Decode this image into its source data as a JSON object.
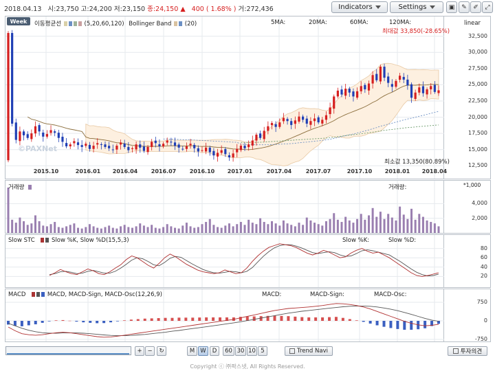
{
  "header": {
    "date": "2018.04.13",
    "open": "시:23,750",
    "high": "고:24,200",
    "low": "저:23,150",
    "close_label": "종:24,150",
    "change_arrow": "▲",
    "change": "400",
    "change_pct": "( 1.68% )",
    "volume": "거:272,436",
    "indicators_btn": "Indicators",
    "settings_btn": "Settings",
    "icon_print": "print-icon",
    "icon_pen": "pen-icon",
    "icon_erase": "eraser-icon",
    "icon_expand": "expand-icon"
  },
  "price_pane": {
    "period_btn": "Week",
    "ma_legend": "이동평균선",
    "ma_params": "(5,20,60,120)",
    "bb_legend": "Bollinger Band",
    "bb_params": "(20)",
    "ma5": "5MA:",
    "ma20": "20MA:",
    "ma60": "60MA:",
    "ma120": "120MA:",
    "scale": "linear",
    "max_label": "최대값 33,850(-28.65%)",
    "min_label": "최소값 13,350(80.89%)",
    "watermark": "©PAXNet",
    "y_ticks": [
      "32,500",
      "30,000",
      "27,500",
      "25,000",
      "22,500",
      "20,000",
      "17,500",
      "15,000",
      "12,500"
    ],
    "x_ticks": [
      "2015.10",
      "2016.01",
      "2016.04",
      "2016.07",
      "2016.10",
      "2017.01",
      "2017.04",
      "2017.07",
      "2017.10",
      "2018.01",
      "2018.04"
    ]
  },
  "volume_pane": {
    "title": "거래량",
    "right_label": "거래량:",
    "unit": "*1,000",
    "y_ticks": [
      "4,000",
      "2,000"
    ]
  },
  "stc_pane": {
    "title": "Slow STC",
    "legend": "Slow %K, Slow %D(15,5,3)",
    "k_label": "Slow %K:",
    "d_label": "Slow %D:",
    "y_ticks": [
      "80",
      "60",
      "40",
      "20"
    ]
  },
  "macd_pane": {
    "title": "MACD",
    "legend": "MACD, MACD-Sign, MACD-Osc(12,26,9)",
    "macd_label": "MACD:",
    "sign_label": "MACD-Sign:",
    "osc_label": "MACD-Osc:",
    "y_ticks": [
      "750",
      "0",
      "-750"
    ]
  },
  "bottom": {
    "plus": "+",
    "minus": "−",
    "refresh": "↻",
    "periods": [
      "M",
      "W",
      "D",
      "60",
      "30",
      "10",
      "5"
    ],
    "active_period": "W",
    "trend_navi": "Trend Navi",
    "invest_opinion": "투자의견",
    "copyright": "Copyright ⓒ ㈜팍스넷, All Rights Reserved."
  },
  "colors": {
    "up": "#d61f1f",
    "down": "#1f3fb5",
    "ma": "#8a6d3b",
    "band_fill": "#fdf0e0",
    "volume": "#9a7fb0"
  },
  "chart_data": {
    "type": "candlestick",
    "interval": "weekly",
    "y_range": [
      12000,
      33850
    ],
    "close_series": [
      33000,
      19000,
      16500,
      17800,
      17200,
      16800,
      17500,
      18600,
      17800,
      17000,
      17400,
      18000,
      17600,
      16800,
      16200,
      15500,
      15800,
      16300,
      15700,
      15400,
      15900,
      15100,
      15600,
      16000,
      15800,
      15400,
      15200,
      15000,
      15600,
      16100,
      15400,
      14900,
      15200,
      15800,
      15300,
      14800,
      15400,
      16200,
      16000,
      15500,
      15900,
      16400,
      16100,
      15600,
      15300,
      15100,
      15500,
      15900,
      15200,
      14700,
      14900,
      15300,
      14600,
      14100,
      14500,
      14900,
      14300,
      13800,
      14400,
      15100,
      15600,
      15200,
      15800,
      16400,
      17300,
      16800,
      17900,
      18600,
      19100,
      18500,
      19200,
      19900,
      19400,
      18800,
      19500,
      20100,
      19600,
      19000,
      19400,
      19800,
      19200,
      19600,
      20300,
      21500,
      23200,
      24100,
      23500,
      24400,
      23800,
      23200,
      24000,
      24800,
      24300,
      25200,
      26500,
      25700,
      27800,
      26100,
      25300,
      24700,
      25600,
      26400,
      25800,
      24900,
      23000,
      23800,
      24600,
      23700,
      24300,
      24800,
      23900,
      24150
    ],
    "volume_series": [
      6200,
      1800,
      1400,
      2100,
      1600,
      1100,
      1300,
      2400,
      1600,
      1000,
      900,
      1200,
      1500,
      800,
      700,
      900,
      1100,
      1300,
      700,
      600,
      800,
      1200,
      900,
      700,
      600,
      800,
      1000,
      700,
      600,
      900,
      1100,
      800,
      700,
      900,
      1300,
      1000,
      800,
      1100,
      700,
      600,
      800,
      1200,
      900,
      700,
      600,
      1000,
      1400,
      900,
      700,
      800,
      1200,
      1500,
      1900,
      1100,
      800,
      700,
      1000,
      1300,
      900,
      1200,
      1500,
      1100,
      1800,
      1400,
      1200,
      2000,
      1500,
      1200,
      1600,
      1300,
      1000,
      1700,
      1300,
      1100,
      900,
      1400,
      1100,
      2100,
      1700,
      1400,
      1200,
      1000,
      1600,
      1900,
      2700,
      1800,
      1500,
      2200,
      1700,
      1400,
      1900,
      2600,
      1800,
      2400,
      3400,
      2200,
      2900,
      1900,
      2600,
      2100,
      1700,
      3600,
      2500,
      1900,
      3300,
      1800,
      2600,
      2200,
      1700,
      1500,
      1300,
      900
    ],
    "stc_k": [
      22,
      28,
      35,
      30,
      26,
      24,
      30,
      36,
      32,
      26,
      24,
      30,
      38,
      45,
      56,
      64,
      60,
      52,
      44,
      38,
      48,
      60,
      68,
      62,
      54,
      46,
      40,
      34,
      30,
      28,
      26,
      28,
      34,
      30,
      26,
      28,
      38,
      52,
      64,
      74,
      82,
      86,
      90,
      88,
      86,
      82,
      76,
      70,
      66,
      70,
      76,
      72,
      66,
      60,
      62,
      70,
      76,
      80,
      74,
      70,
      72,
      66,
      60,
      52,
      44,
      36,
      28,
      22,
      20,
      22,
      25,
      28
    ],
    "stc_d": [
      24,
      26,
      30,
      31,
      29,
      26,
      27,
      31,
      33,
      30,
      27,
      27,
      31,
      38,
      46,
      55,
      60,
      58,
      52,
      45,
      43,
      50,
      59,
      63,
      61,
      54,
      47,
      41,
      35,
      31,
      28,
      27,
      29,
      31,
      30,
      28,
      31,
      39,
      51,
      63,
      73,
      81,
      86,
      88,
      88,
      85,
      81,
      76,
      71,
      69,
      71,
      73,
      71,
      66,
      63,
      64,
      69,
      75,
      77,
      75,
      72,
      69,
      66,
      59,
      52,
      44,
      36,
      29,
      24,
      21,
      22,
      25
    ],
    "macd": [
      -250,
      -400,
      -520,
      -560,
      -580,
      -560,
      -520,
      -480,
      -460,
      -480,
      -520,
      -560,
      -600,
      -640,
      -660,
      -650,
      -620,
      -580,
      -540,
      -500,
      -460,
      -420,
      -380,
      -340,
      -300,
      -260,
      -220,
      -180,
      -140,
      -100,
      -60,
      -20,
      20,
      60,
      120,
      180,
      240,
      300,
      360,
      420,
      460,
      500,
      520,
      540,
      560,
      590,
      620,
      660,
      700,
      690,
      660,
      620,
      560,
      480,
      380,
      280,
      180,
      80,
      -20,
      -100,
      -160,
      -200,
      -180,
      -140
    ],
    "macd_sign": [
      -100,
      -200,
      -300,
      -380,
      -440,
      -480,
      -500,
      -500,
      -490,
      -485,
      -490,
      -500,
      -520,
      -545,
      -570,
      -590,
      -600,
      -600,
      -590,
      -570,
      -550,
      -520,
      -490,
      -460,
      -420,
      -390,
      -350,
      -310,
      -275,
      -240,
      -200,
      -160,
      -120,
      -80,
      -40,
      10,
      60,
      110,
      160,
      210,
      260,
      310,
      350,
      390,
      420,
      450,
      480,
      510,
      540,
      570,
      590,
      600,
      600,
      590,
      560,
      520,
      470,
      410,
      340,
      260,
      180,
      100,
      30,
      -20
    ]
  }
}
